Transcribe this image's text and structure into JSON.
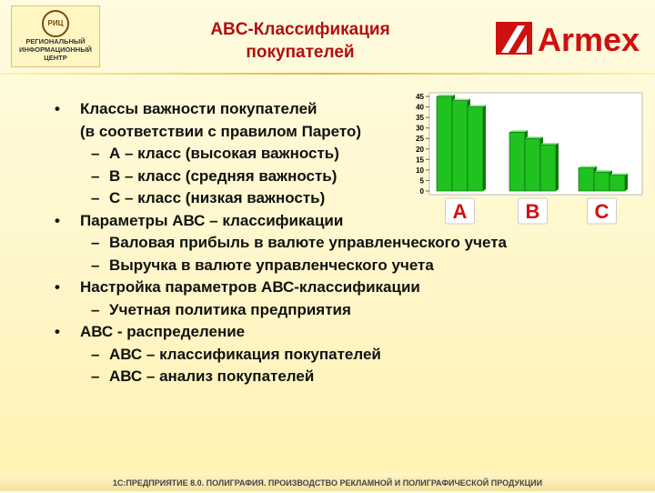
{
  "header": {
    "logo_left": {
      "mark": "РИЦ",
      "lines": [
        "РЕГИОНАЛЬНЫЙ",
        "ИНФОРМАЦИОННЫЙ",
        "ЦЕНТР"
      ]
    },
    "title": [
      "ABC-Классификация",
      "покупателей"
    ],
    "logo_right": "Armex"
  },
  "body": {
    "items": [
      {
        "level": 1,
        "lines": [
          "Классы важности покупателей",
          "(в соответствии с правилом Парето)"
        ]
      },
      {
        "level": 2,
        "lines": [
          "А – класс (высокая важность)"
        ]
      },
      {
        "level": 2,
        "lines": [
          "В – класс (средняя важность)"
        ]
      },
      {
        "level": 2,
        "lines": [
          "С – класс (низкая важность)"
        ]
      },
      {
        "level": 1,
        "lines": [
          "Параметры АВС – классификации"
        ]
      },
      {
        "level": 2,
        "lines": [
          "Валовая прибыль в валюте управленческого учета"
        ]
      },
      {
        "level": 2,
        "lines": [
          "Выручка в валюте управленческого учета"
        ]
      },
      {
        "level": 1,
        "lines": [
          "Настройка параметров АВС-классификации"
        ]
      },
      {
        "level": 2,
        "lines": [
          "Учетная политика предприятия"
        ]
      },
      {
        "level": 1,
        "lines": [
          "АВС - распределение"
        ]
      },
      {
        "level": 2,
        "lines": [
          "АВС – классификация покупателей"
        ]
      },
      {
        "level": 2,
        "lines": [
          "АВС – анализ покупателей"
        ]
      }
    ]
  },
  "chart": {
    "type": "bar",
    "ylim": [
      0,
      45
    ],
    "yticks": [
      0,
      5,
      10,
      15,
      20,
      25,
      30,
      35,
      40,
      45
    ],
    "color": "#1fc21f",
    "groups": [
      {
        "label": "A",
        "values": [
          45,
          43,
          40
        ]
      },
      {
        "label": "B",
        "values": [
          28,
          25,
          22
        ]
      },
      {
        "label": "C",
        "values": [
          11,
          9,
          7.5
        ]
      }
    ]
  },
  "footer": "1С:ПРЕДПРИЯТИЕ 8.0. ПОЛИГРАФИЯ. ПРОИЗВОДСТВО РЕКЛАМНОЙ И ПОЛИГРАФИЧЕСКОЙ ПРОДУКЦИИ"
}
